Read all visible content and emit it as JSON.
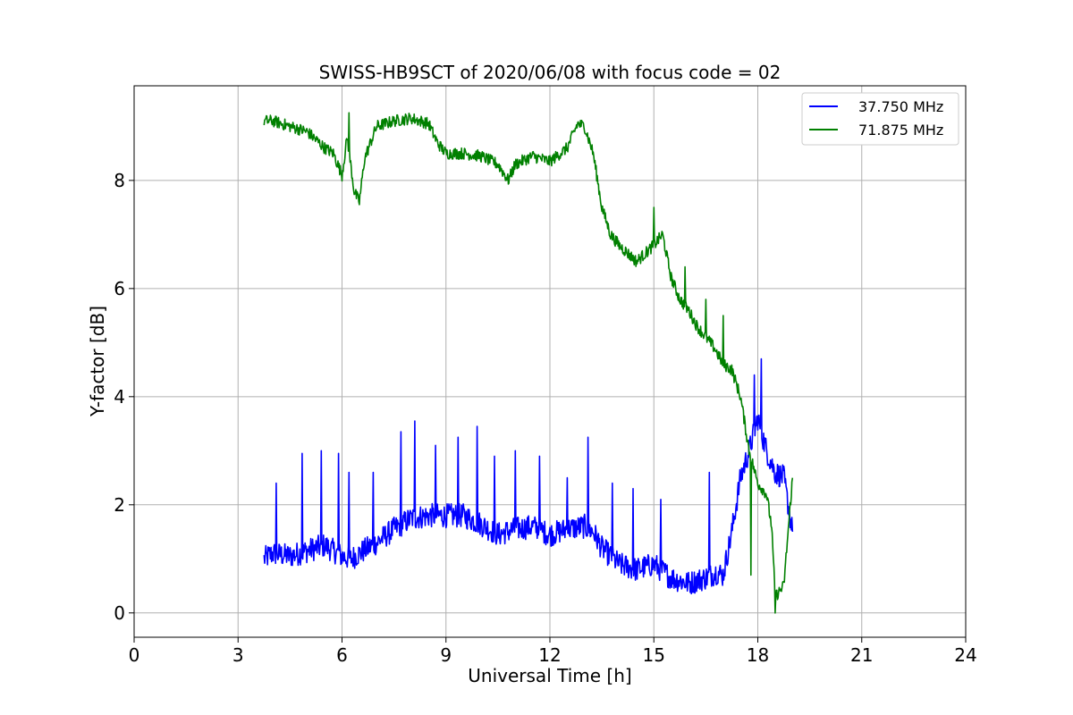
{
  "chart_data": {
    "type": "line",
    "title": "SWISS-HB9SCT of 2020/06/08 with focus code = 02",
    "xlabel": "Universal Time [h]",
    "ylabel": "Y-factor [dB]",
    "xlim": [
      0,
      24
    ],
    "ylim": [
      -0.45,
      9.75
    ],
    "xticks": [
      0,
      3,
      6,
      9,
      12,
      15,
      18,
      21,
      24
    ],
    "yticks": [
      0,
      2,
      4,
      6,
      8
    ],
    "grid": true,
    "legend_position": "top-right",
    "series": [
      {
        "name": "37.750 MHz",
        "color": "#0000ff",
        "x": [
          3.75,
          4.0,
          4.5,
          5.0,
          5.5,
          6.0,
          6.25,
          6.5,
          7.0,
          7.5,
          8.0,
          8.5,
          9.0,
          9.5,
          10.0,
          10.5,
          11.0,
          11.5,
          12.0,
          12.5,
          13.0,
          13.25,
          13.5,
          14.0,
          14.5,
          15.0,
          15.5,
          16.0,
          16.5,
          16.8,
          17.0,
          17.25,
          17.5,
          17.75,
          18.0,
          18.25,
          18.5,
          18.75,
          19.0
        ],
        "y": [
          1.0,
          1.1,
          1.05,
          1.15,
          1.25,
          1.05,
          1.0,
          1.1,
          1.3,
          1.55,
          1.75,
          1.8,
          1.8,
          1.8,
          1.65,
          1.45,
          1.55,
          1.6,
          1.45,
          1.55,
          1.6,
          1.5,
          1.2,
          0.9,
          0.8,
          0.9,
          0.65,
          0.55,
          0.65,
          0.75,
          0.7,
          1.5,
          2.5,
          3.0,
          3.6,
          3.0,
          2.6,
          2.5,
          1.5
        ],
        "spikes": [
          [
            4.1,
            2.4
          ],
          [
            4.85,
            2.95
          ],
          [
            5.4,
            3.0
          ],
          [
            5.9,
            2.95
          ],
          [
            6.2,
            2.6
          ],
          [
            6.9,
            2.6
          ],
          [
            7.7,
            3.35
          ],
          [
            8.1,
            3.55
          ],
          [
            8.7,
            3.1
          ],
          [
            9.35,
            3.25
          ],
          [
            9.9,
            3.45
          ],
          [
            10.4,
            2.9
          ],
          [
            11.0,
            3.0
          ],
          [
            11.7,
            2.9
          ],
          [
            12.5,
            2.5
          ],
          [
            13.1,
            3.25
          ],
          [
            13.8,
            2.4
          ],
          [
            14.4,
            2.3
          ],
          [
            15.2,
            2.1
          ],
          [
            16.6,
            2.6
          ],
          [
            17.9,
            4.4
          ],
          [
            18.1,
            4.7
          ]
        ]
      },
      {
        "name": "71.875 MHz",
        "color": "#008000",
        "x": [
          3.75,
          4.0,
          4.5,
          5.0,
          5.5,
          5.75,
          6.0,
          6.15,
          6.35,
          6.5,
          6.65,
          7.0,
          7.5,
          8.0,
          8.5,
          8.75,
          9.0,
          9.5,
          10.0,
          10.5,
          10.8,
          11.0,
          11.5,
          12.0,
          12.5,
          12.8,
          13.0,
          13.25,
          13.5,
          13.75,
          14.0,
          14.5,
          15.0,
          15.25,
          15.5,
          15.75,
          16.0,
          16.25,
          16.5,
          16.75,
          17.0,
          17.25,
          17.5,
          17.75,
          18.0,
          18.25,
          18.4,
          18.5,
          18.75,
          19.0
        ],
        "y": [
          9.1,
          9.1,
          9.0,
          8.9,
          8.6,
          8.5,
          8.1,
          8.8,
          7.8,
          7.6,
          8.4,
          9.0,
          9.1,
          9.15,
          9.05,
          8.7,
          8.5,
          8.5,
          8.45,
          8.3,
          8.0,
          8.3,
          8.45,
          8.35,
          8.6,
          9.05,
          9.0,
          8.5,
          7.5,
          7.0,
          6.8,
          6.5,
          6.8,
          7.0,
          6.2,
          5.8,
          5.6,
          5.3,
          5.1,
          4.9,
          4.6,
          4.5,
          4.0,
          3.0,
          2.4,
          2.2,
          1.6,
          0.3,
          0.5,
          2.5
        ],
        "spikes": [
          [
            6.2,
            9.25
          ],
          [
            15.0,
            7.5
          ],
          [
            15.9,
            6.4
          ],
          [
            16.5,
            5.8
          ],
          [
            17.0,
            5.5
          ],
          [
            17.8,
            0.7
          ],
          [
            18.5,
            0.0
          ]
        ]
      }
    ]
  }
}
